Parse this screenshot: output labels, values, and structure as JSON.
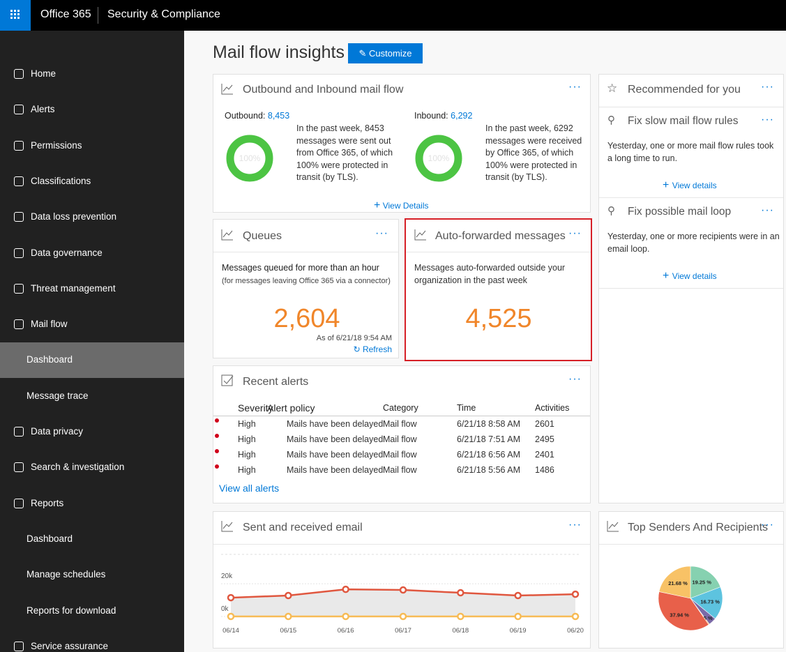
{
  "header": {
    "app": "Office 365",
    "product": "Security & Compliance"
  },
  "nav": [
    {
      "label": "Home"
    },
    {
      "label": "Alerts",
      "expanded": false
    },
    {
      "label": "Permissions"
    },
    {
      "label": "Classifications",
      "expanded": false
    },
    {
      "label": "Data loss prevention",
      "expanded": false
    },
    {
      "label": "Data governance",
      "expanded": false
    },
    {
      "label": "Threat management",
      "expanded": false
    },
    {
      "label": "Mail flow",
      "expanded": true,
      "children": [
        "Dashboard",
        "Message trace"
      ]
    },
    {
      "label": "Data privacy",
      "expanded": false
    },
    {
      "label": "Search & investigation",
      "expanded": false
    },
    {
      "label": "Reports",
      "expanded": true,
      "children": [
        "Dashboard",
        "Manage schedules",
        "Reports for download"
      ]
    },
    {
      "label": "Service assurance",
      "expanded": false
    }
  ],
  "page": {
    "title": "Mail flow insights",
    "customize": "Customize"
  },
  "mail_flow": {
    "title": "Outbound and Inbound mail flow",
    "outbound": {
      "label": "Outbound:",
      "count": "8,453",
      "donut": "100%",
      "text": "In the past week, 8453 messages were sent out from Office 365, of which 100% were protected in transit (by TLS)."
    },
    "inbound": {
      "label": "Inbound:",
      "count": "6,292",
      "donut": "100%",
      "text": "In the past week, 6292 messages were received by Office 365, of which 100% were protected in transit (by TLS)."
    },
    "link": "View Details"
  },
  "queues": {
    "title": "Queues",
    "heading": "Messages queued for more than an hour",
    "note": "(for messages leaving Office 365 via a connector)",
    "value": "2,604",
    "as_of": "As of 6/21/18 9:54 AM",
    "refresh": "Refresh"
  },
  "auto_forwarded": {
    "title": "Auto-forwarded messages",
    "heading": "Messages auto-forwarded outside your organization in the past week",
    "value": "4,525"
  },
  "recent_alerts": {
    "title": "Recent alerts",
    "columns": [
      "Severity",
      "Alert policy",
      "Category",
      "Time",
      "Activities"
    ],
    "rows": [
      [
        "High",
        "Mails have been delayed",
        "Mail flow",
        "6/21/18 8:58 AM",
        2601
      ],
      [
        "High",
        "Mails have been delayed",
        "Mail flow",
        "6/21/18 7:51 AM",
        2495
      ],
      [
        "High",
        "Mails have been delayed",
        "Mail flow",
        "6/21/18 6:56 AM",
        2401
      ],
      [
        "High",
        "Mails have been delayed",
        "Mail flow",
        "6/21/18 5:56 AM",
        1486
      ]
    ],
    "link": "View all alerts"
  },
  "recommended": {
    "title": "Recommended for you",
    "items": [
      {
        "title": "Fix slow mail flow rules",
        "text": "Yesterday, one or more mail flow rules took a long time to run.",
        "link": "View details"
      },
      {
        "title": "Fix possible mail loop",
        "text": "Yesterday, one or more recipients were in an email loop.",
        "link": "View details"
      }
    ]
  },
  "sent_received": {
    "title": "Sent and received email",
    "chart": {
      "type": "line",
      "categories": [
        "06/14",
        "06/15",
        "06/16",
        "06/17",
        "06/18",
        "06/19",
        "06/20"
      ],
      "series": [
        {
          "color": "#e0573f",
          "values": [
            11500,
            12800,
            16600,
            16200,
            14500,
            12800,
            13600
          ]
        },
        {
          "color": "#f7bb55",
          "values": [
            0,
            0,
            0,
            0,
            0,
            0,
            0
          ]
        }
      ],
      "ylim": [
        0,
        38000
      ],
      "yticks": [
        {
          "value": 0,
          "label": "0k"
        },
        {
          "value": 20000,
          "label": "20k"
        }
      ]
    }
  },
  "top_senders": {
    "title": "Top Senders And Recipients",
    "chart": {
      "type": "pie",
      "values": [
        19.25,
        16.73,
        3.95,
        0.45,
        37.94,
        21.68
      ],
      "value_labels": [
        "19.25 %",
        "16.73 %",
        null,
        "0.45 %",
        "37.94 %",
        "21.68 %"
      ],
      "colors": [
        "#86d1b0",
        "#5dc3df",
        "#7b6aa8",
        "#f0a23c",
        "#e8604a",
        "#f8c266"
      ]
    }
  }
}
